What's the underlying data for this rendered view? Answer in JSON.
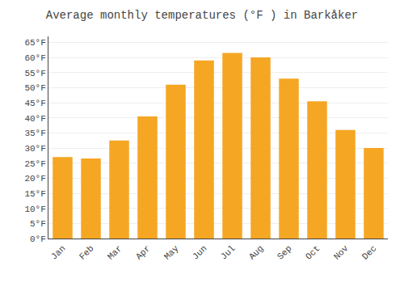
{
  "chart_data": {
    "type": "bar",
    "title": "Average monthly temperatures (°F ) in Barkåker",
    "categories": [
      "Jan",
      "Feb",
      "Mar",
      "Apr",
      "May",
      "Jun",
      "Jul",
      "Aug",
      "Sep",
      "Oct",
      "Nov",
      "Dec"
    ],
    "values": [
      27,
      26.5,
      32.5,
      40.5,
      51,
      59,
      61.5,
      60,
      53,
      45.5,
      36,
      30
    ],
    "color": "#F5A623",
    "ylim": [
      0,
      67
    ],
    "yticks": [
      {
        "value": 0,
        "label": "0°F"
      },
      {
        "value": 5,
        "label": "5°F"
      },
      {
        "value": 10,
        "label": "10°F"
      },
      {
        "value": 15,
        "label": "15°F"
      },
      {
        "value": 20,
        "label": "20°F"
      },
      {
        "value": 25,
        "label": "25°F"
      },
      {
        "value": 30,
        "label": "30°F"
      },
      {
        "value": 35,
        "label": "35°F"
      },
      {
        "value": 40,
        "label": "40°F"
      },
      {
        "value": 45,
        "label": "45°F"
      },
      {
        "value": 50,
        "label": "50°F"
      },
      {
        "value": 55,
        "label": "55°F"
      },
      {
        "value": 60,
        "label": "60°F"
      },
      {
        "value": 65,
        "label": "65°F"
      }
    ],
    "grid": true
  }
}
